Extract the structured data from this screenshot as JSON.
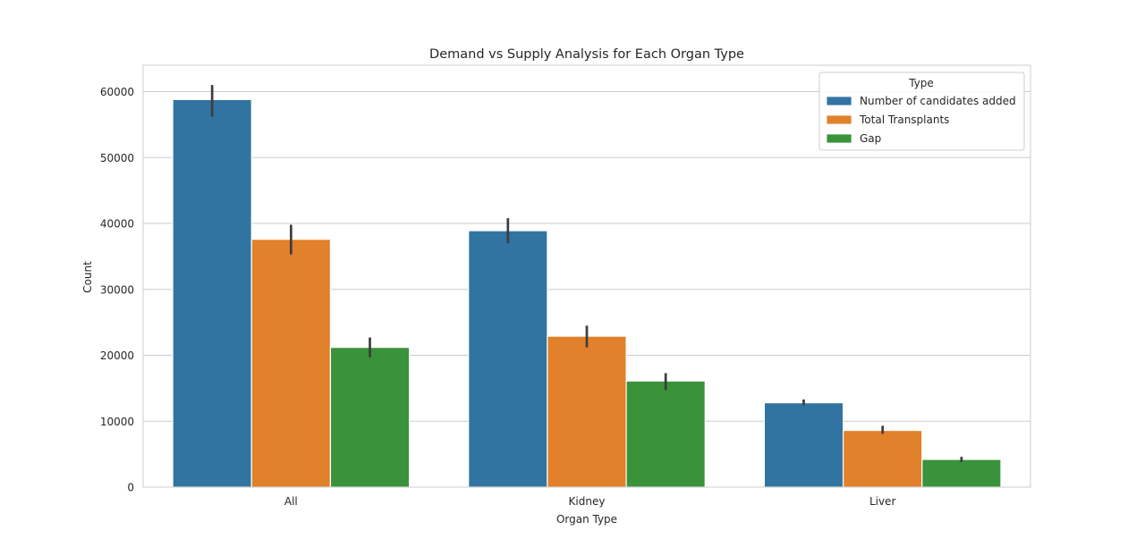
{
  "chart_data": {
    "type": "bar",
    "title": "Demand vs Supply Analysis for Each Organ Type",
    "xlabel": "Organ Type",
    "ylabel": "Count",
    "categories": [
      "All",
      "Kidney",
      "Liver"
    ],
    "ylim": [
      0,
      64000
    ],
    "yticks": [
      0,
      10000,
      20000,
      30000,
      40000,
      50000,
      60000
    ],
    "grid": true,
    "legend": {
      "title": "Type",
      "placement": "top-right"
    },
    "series": [
      {
        "name": "Number of candidates added",
        "color": "#3274a1",
        "values": [
          58800,
          38900,
          12800
        ],
        "error_low": [
          56200,
          37000,
          12400
        ],
        "error_high": [
          61000,
          40800,
          13300
        ]
      },
      {
        "name": "Total Transplants",
        "color": "#e1812c",
        "values": [
          37600,
          22900,
          8600
        ],
        "error_low": [
          35300,
          21200,
          8100
        ],
        "error_high": [
          39800,
          24500,
          9300
        ]
      },
      {
        "name": "Gap",
        "color": "#3a923a",
        "values": [
          21200,
          16100,
          4200
        ],
        "error_low": [
          19700,
          14700,
          3800
        ],
        "error_high": [
          22700,
          17300,
          4600
        ]
      }
    ]
  }
}
